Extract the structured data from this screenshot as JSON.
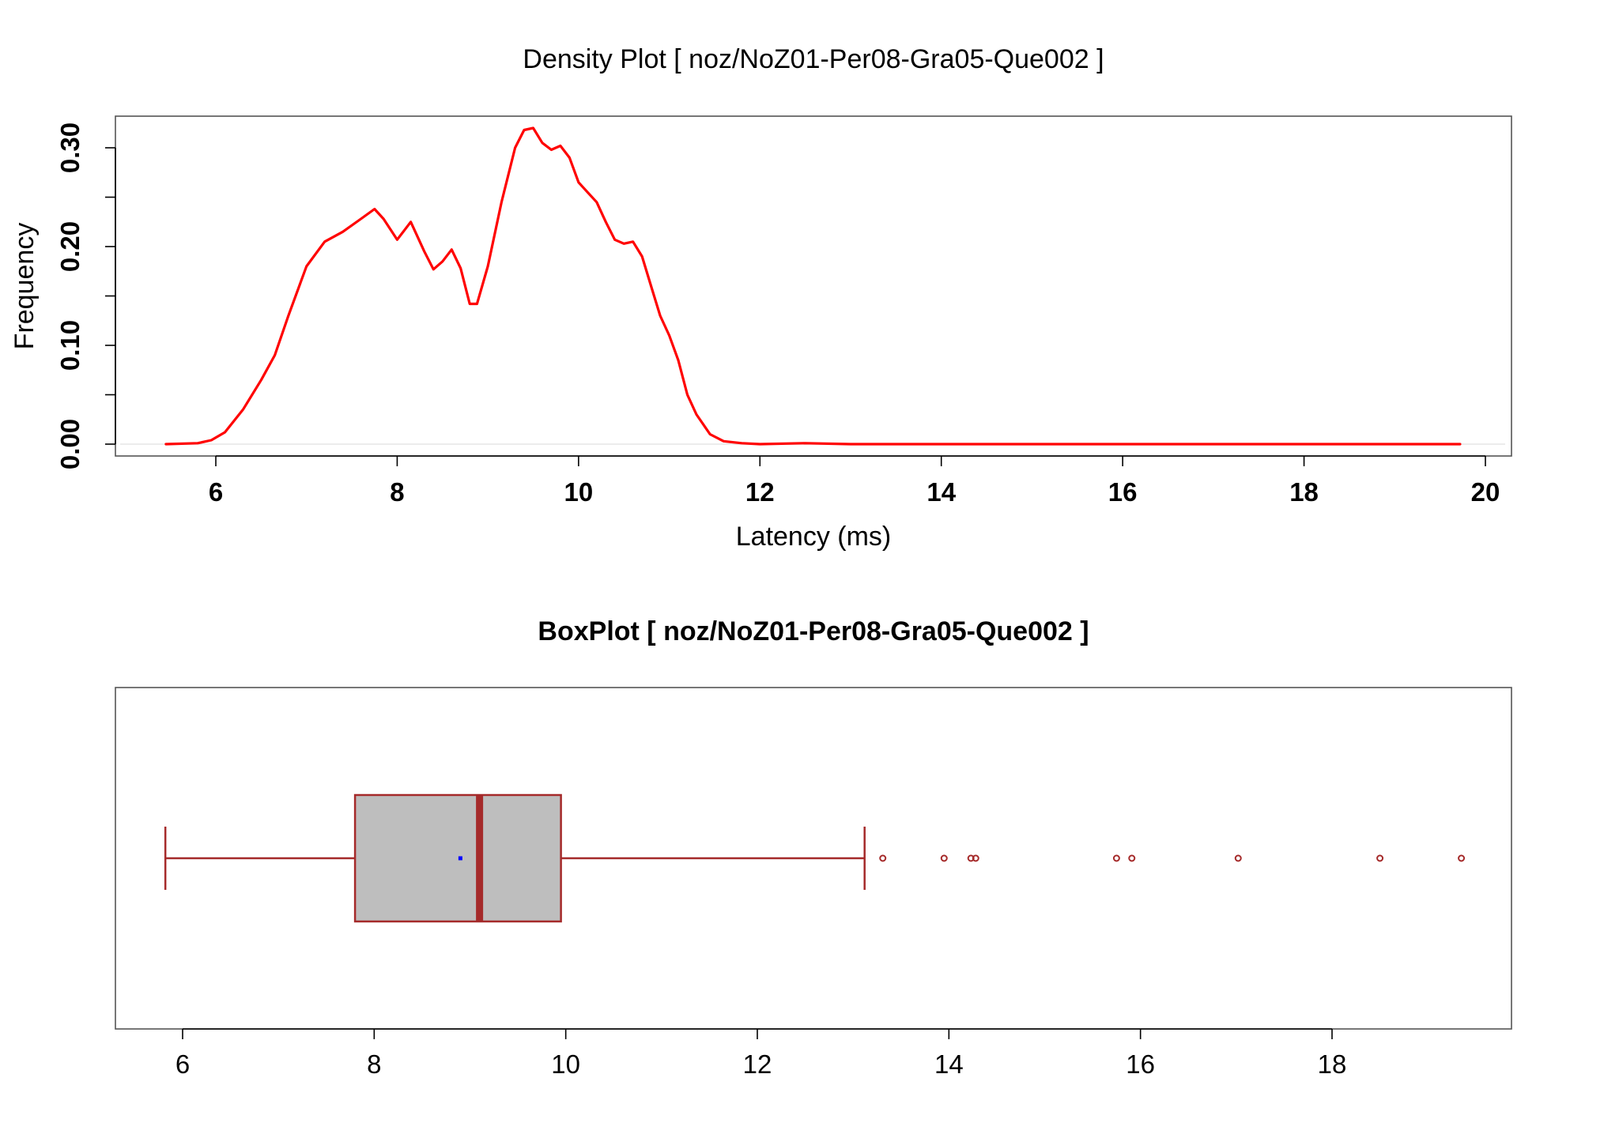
{
  "chart_data": [
    {
      "type": "line",
      "title": "Density Plot [ noz/NoZ01-Per08-Gra05-Que002 ]",
      "xlabel": "Latency (ms)",
      "ylabel": "Frequency",
      "xlim": [
        5.4,
        20.0
      ],
      "ylim": [
        0.0,
        0.33
      ],
      "x_ticks": [
        "6",
        "8",
        "10",
        "12",
        "14",
        "16",
        "18",
        "20"
      ],
      "y_ticks": [
        "0.00",
        "0.10",
        "0.20",
        "0.30"
      ],
      "line_color": "#ff0000",
      "series": [
        {
          "x": [
            5.45,
            5.8,
            5.95,
            6.1,
            6.3,
            6.5,
            6.65,
            6.8,
            7.0,
            7.2,
            7.4,
            7.6,
            7.75,
            7.85,
            8.0,
            8.15,
            8.3,
            8.4,
            8.5,
            8.6,
            8.7,
            8.8,
            8.88,
            9.0,
            9.15,
            9.3,
            9.4,
            9.5,
            9.6,
            9.7,
            9.8,
            9.9,
            10.0,
            10.1,
            10.2,
            10.3,
            10.4,
            10.5,
            10.6,
            10.7,
            10.8,
            10.9,
            11.0,
            11.1,
            11.2,
            11.3,
            11.45,
            11.6,
            11.8,
            12.0,
            12.5,
            13.0,
            14.0,
            16.0,
            18.0,
            19.72
          ],
          "y": [
            0.0,
            0.001,
            0.004,
            0.012,
            0.035,
            0.065,
            0.09,
            0.13,
            0.18,
            0.205,
            0.215,
            0.228,
            0.238,
            0.228,
            0.207,
            0.225,
            0.195,
            0.177,
            0.185,
            0.197,
            0.178,
            0.142,
            0.142,
            0.18,
            0.245,
            0.3,
            0.318,
            0.32,
            0.305,
            0.298,
            0.302,
            0.29,
            0.265,
            0.255,
            0.245,
            0.225,
            0.207,
            0.203,
            0.205,
            0.19,
            0.16,
            0.13,
            0.11,
            0.085,
            0.05,
            0.03,
            0.01,
            0.003,
            0.001,
            0.0,
            0.001,
            0.0,
            0.0,
            0.0,
            0.0,
            0.0
          ]
        }
      ]
    },
    {
      "type": "box",
      "title": "BoxPlot [ noz/NoZ01-Per08-Gra05-Que002 ]",
      "xlim": [
        5.75,
        19.6
      ],
      "x_ticks": [
        "6",
        "8",
        "10",
        "12",
        "14",
        "16",
        "18"
      ],
      "whisker_low": 5.82,
      "q1": 7.8,
      "median": 9.1,
      "q3": 9.95,
      "whisker_high": 13.12,
      "mean": 8.9,
      "outliers": [
        13.31,
        13.95,
        14.23,
        14.28,
        15.75,
        15.91,
        17.02,
        18.5,
        19.35
      ],
      "box_fill": "#bebebe",
      "border_color": "#a52a2a",
      "mean_color": "#0000ff"
    }
  ]
}
